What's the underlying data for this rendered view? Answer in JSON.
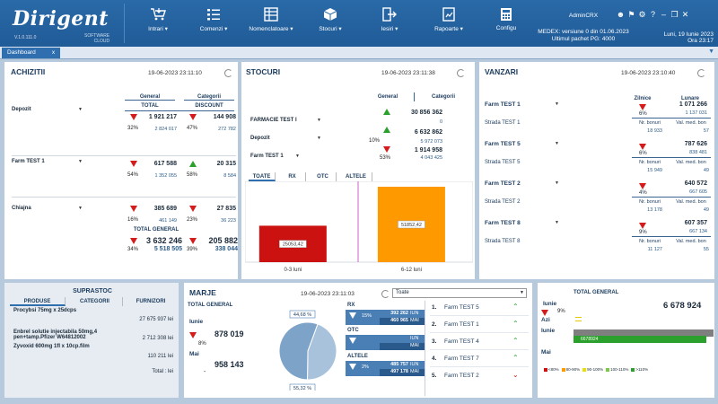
{
  "app": {
    "brand": "Dirigent",
    "version": "V.1.0.111.0",
    "tagline_1": "SOFTWARE",
    "tagline_2": "CLOUD"
  },
  "nav": [
    {
      "label": "Intrari ▾",
      "icon": "cart-icon"
    },
    {
      "label": "Comenzi ▾",
      "icon": "list-icon"
    },
    {
      "label": "Nomenclatoare ▾",
      "icon": "table-icon"
    },
    {
      "label": "Stocuri ▾",
      "icon": "box-icon"
    },
    {
      "label": "Iesiri ▾",
      "icon": "exit-icon"
    },
    {
      "label": "Rapoarte ▾",
      "icon": "report-icon"
    },
    {
      "label": "Configu",
      "icon": "calculator-icon"
    }
  ],
  "user": {
    "name": "AdminCRX",
    "medex": "MEDEX: versiune 0 din 01.06.2023",
    "pachet": "Ultimul pachet PG: 4000",
    "date": "Luni, 19 Iunie 2023",
    "time": "Ora 23:17"
  },
  "tabs": [
    {
      "label": "Dashboard",
      "close": "x"
    }
  ],
  "achizitii": {
    "title": "ACHIZITII",
    "date": "19-06-2023 23:11:10",
    "col_general": "General",
    "col_categorii": "Categorii",
    "sub_total": "TOTAL",
    "sub_discount": "DISCOUNT",
    "rows": [
      {
        "name": "Depozit",
        "val": "1 921 217",
        "sub": "2 824 017",
        "pct": "32%",
        "trend": "down",
        "val2": "144 908",
        "sub2": "272 782",
        "pct2": "47%",
        "trend2": "down"
      },
      {
        "name": "Farm TEST  1",
        "val": "617 588",
        "sub": "1 352 055",
        "pct": "54%",
        "trend": "down",
        "val2": "20 315",
        "sub2": "8 584",
        "pct2": "58%",
        "trend2": "up"
      },
      {
        "name": "Chiajna",
        "val": "385 689",
        "sub": "461 149",
        "pct": "16%",
        "trend": "down",
        "val2": "27 835",
        "sub2": "36 223",
        "pct2": "23%",
        "trend2": "down"
      }
    ],
    "total_label": "TOTAL GENERAL",
    "total": {
      "val": "3 632 246",
      "sub": "5 518 505",
      "pct": "34%",
      "val2": "205 882",
      "sub2": "338 044",
      "pct2": "39%"
    }
  },
  "stocuri": {
    "title": "STOCURI",
    "date": "19-06-2023 23:11:38",
    "col_general": "General",
    "col_categorii": "Categorii",
    "rows": [
      {
        "name": "FARMACIE TEST I",
        "val": "30 856 362",
        "sub": "0",
        "pct": "",
        "trend": "up"
      },
      {
        "name": "Depozit",
        "val": "6 632 862",
        "sub": "5 972 073",
        "pct": "10%",
        "trend": "up"
      },
      {
        "name": "Farm TEST  1",
        "val": "1 914 958",
        "sub": "4 043 425",
        "pct": "53%",
        "trend": "down"
      }
    ],
    "chart_tabs": [
      "TOATE",
      "RX",
      "OTC",
      "ALTELE"
    ],
    "chart_data": {
      "type": "bar",
      "categories": [
        "0-3 luni",
        "6-12 luni"
      ],
      "values": [
        25053.42,
        51852.42
      ],
      "labels": [
        "25053,42",
        "51852,42"
      ],
      "colors": [
        "#cc1111",
        "#ff9900"
      ],
      "xlabel": "",
      "ylabel": ""
    }
  },
  "vanzari": {
    "title": "VANZARI",
    "date": "19-06-2023 23:10:40",
    "col_zilnice": "Zilnice",
    "col_lunare": "Lunare",
    "sub_nr": "Nr. bonuri",
    "sub_val": "Val. med. bon",
    "rows": [
      {
        "name": "Farm TEST  1",
        "store": "Strada TEST 1",
        "lunar": "1 071 266",
        "lunar_sub": "1 137 031",
        "pct": "6%",
        "bonuri": "18 933",
        "valmed": "57"
      },
      {
        "name": "Farm TEST  5",
        "store": "Strada TEST 5",
        "lunar": "787 626",
        "lunar_sub": "838 481",
        "pct": "6%",
        "bonuri": "15 949",
        "valmed": "49"
      },
      {
        "name": "Farm TEST  2",
        "store": "Strada TEST 2",
        "lunar": "640 572",
        "lunar_sub": "667 605",
        "pct": "4%",
        "bonuri": "13 178",
        "valmed": "49"
      },
      {
        "name": "Farm TEST  8",
        "store": "Strada TEST 8",
        "lunar": "607 357",
        "lunar_sub": "667 134",
        "pct": "9%",
        "bonuri": "11 127",
        "valmed": "55"
      }
    ]
  },
  "suprastoc": {
    "title": "SUPRASTOC",
    "tabs": [
      "PRODUSE",
      "CATEGORII",
      "FURNIZORI"
    ],
    "items": [
      {
        "name": "Procybsi 75mg x 25dcps",
        "value": "27 675 937  lei"
      },
      {
        "name": "Enbrel solutie injectabila 50mg,4 pen+tamp.Pfizer W64812002",
        "value": "2 712 308  lei"
      },
      {
        "name": "Zyvoxid 600mg 1fl x 10cp.film",
        "value": "110 211  lei"
      }
    ],
    "total_label": "Total :  lei"
  },
  "marje": {
    "title": "MARJE",
    "date": "19-06-2023 23:11:03",
    "select": "Toate",
    "total_label": "TOTAL GENERAL",
    "iunie_label": "Iunie",
    "iunie_val": "878 019",
    "pct": "8%",
    "mai_label": "Mai",
    "mai_val": "958 143",
    "dash": "-",
    "pie": {
      "labels": [
        "44,68 %",
        "55,32 %"
      ],
      "values": [
        44.68,
        55.32
      ]
    },
    "cats": [
      {
        "name": "RX",
        "pct": "15%",
        "iun": "392 262",
        "mai": "460 965",
        "iun_l": "IUN",
        "mai_l": "MAI"
      },
      {
        "name": "OTC",
        "pct": "",
        "iun": "",
        "mai": "",
        "iun_l": "IUN",
        "mai_l": "MAI"
      },
      {
        "name": "ALTELE",
        "pct": "2%",
        "iun": "485 757",
        "mai": "497 178",
        "iun_l": "IUN",
        "mai_l": "MAI"
      }
    ],
    "ranking": [
      {
        "n": "1.",
        "name": "Farm TEST 5",
        "trend": "up"
      },
      {
        "n": "2.",
        "name": "Farm TEST 1",
        "trend": "up"
      },
      {
        "n": "3.",
        "name": "Farm TEST 4",
        "trend": "up"
      },
      {
        "n": "4.",
        "name": "Farm TEST 7",
        "trend": "up"
      },
      {
        "n": "5.",
        "name": "Farm TEST 2",
        "trend": "down"
      }
    ]
  },
  "totalgen": {
    "title": "TOTAL GENERAL",
    "iunie_label": "Iunie",
    "iunie_val": "6 678 924",
    "pct": "9%",
    "azi_label": "Azi",
    "iunie2_label": "Iunie",
    "mai_label": "Mai",
    "bar_value": "6678924",
    "bar_fill": 0.95,
    "legend": [
      "<80%",
      "80-90%",
      "90-100%",
      "100-110%",
      ">110%"
    ],
    "legend_colors": [
      "#cc1111",
      "#ff9900",
      "#e8e000",
      "#7ac943",
      "#2ca02c"
    ]
  }
}
